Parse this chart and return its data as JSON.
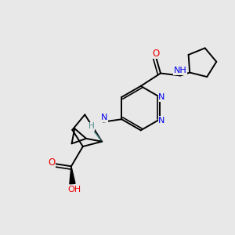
{
  "background_color": "#e8e8e8",
  "figsize": [
    3.0,
    3.0
  ],
  "dpi": 100,
  "atom_colors": {
    "C": "#000000",
    "N": "#0000ee",
    "O": "#ee0000",
    "H": "#4a8a8a"
  },
  "bond_color": "#000000",
  "bond_lw": 1.4,
  "dbo": 0.025
}
